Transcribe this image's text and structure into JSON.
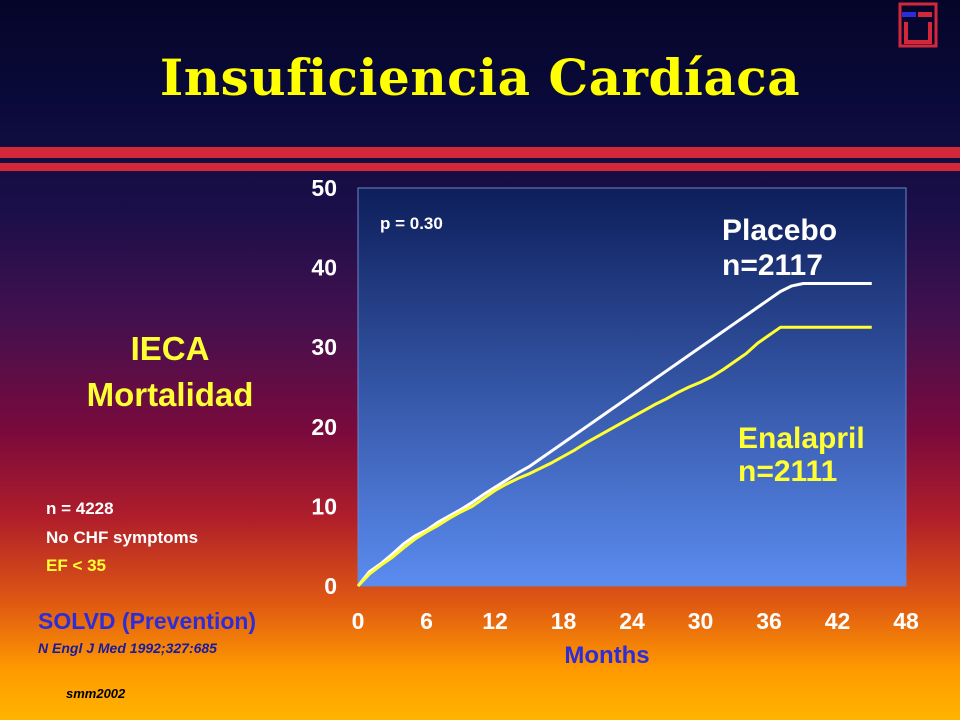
{
  "slide": {
    "title": "Insuficiencia Cardíaca",
    "side_label_line1": "IECA",
    "side_label_line2": "Mortalidad",
    "notes": [
      "n = 4228",
      "No CHF symptoms",
      "EF < 35"
    ],
    "study": "SOLVD (Prevention)",
    "reference": "N Engl J Med 1992;327:685",
    "credit": "smm2002",
    "colors": {
      "title": "#ffff00",
      "band": "#d2283a",
      "study": "#2d2dd8"
    }
  },
  "chart_data": {
    "type": "line",
    "xlabel": "Months",
    "ylabel": "",
    "xlim": [
      0,
      48
    ],
    "ylim": [
      0,
      50
    ],
    "xticks": [
      0,
      6,
      12,
      18,
      24,
      30,
      36,
      42,
      48
    ],
    "yticks": [
      0,
      10,
      20,
      30,
      40,
      50
    ],
    "annotation": "p  = 0.30",
    "grid": false,
    "series": [
      {
        "name": "Placebo",
        "label_line1": "Placebo",
        "label_line2": "n=2117",
        "color": "#ffffff",
        "x": [
          0,
          1,
          2,
          3,
          4,
          5,
          6,
          7,
          8,
          9,
          10,
          11,
          12,
          13,
          14,
          15,
          16,
          17,
          18,
          19,
          20,
          21,
          22,
          23,
          24,
          25,
          26,
          27,
          28,
          29,
          30,
          31,
          32,
          33,
          34,
          35,
          36,
          37,
          38,
          39,
          40,
          41,
          42,
          43,
          44,
          45
        ],
        "y": [
          0,
          1.8,
          2.8,
          4.0,
          5.3,
          6.3,
          7.0,
          8.0,
          8.8,
          9.6,
          10.5,
          11.5,
          12.4,
          13.3,
          14.2,
          15.0,
          16.0,
          17.0,
          18.0,
          19.0,
          20.0,
          21.0,
          22.0,
          23.0,
          24.0,
          25.0,
          26.0,
          27.0,
          28.0,
          29.0,
          30.0,
          31.0,
          32.0,
          33.0,
          34.0,
          35.0,
          36.0,
          37.0,
          37.7,
          38.0,
          38.0,
          38.0,
          38.0,
          38.0,
          38.0,
          38.0
        ]
      },
      {
        "name": "Enalapril",
        "label_line1": "Enalapril",
        "label_line2": "n=2111",
        "color": "#ffff33",
        "x": [
          0,
          1,
          2,
          3,
          4,
          5,
          6,
          7,
          8,
          9,
          10,
          11,
          12,
          13,
          14,
          15,
          16,
          17,
          18,
          19,
          20,
          21,
          22,
          23,
          24,
          25,
          26,
          27,
          28,
          29,
          30,
          31,
          32,
          33,
          34,
          35,
          36,
          37,
          38,
          39,
          40,
          41,
          42,
          43,
          44,
          45
        ],
        "y": [
          0,
          1.5,
          2.6,
          3.6,
          4.8,
          5.9,
          6.8,
          7.6,
          8.5,
          9.3,
          10.0,
          11.0,
          12.0,
          12.8,
          13.5,
          14.1,
          14.8,
          15.5,
          16.3,
          17.1,
          18.0,
          18.8,
          19.6,
          20.4,
          21.2,
          22.0,
          22.8,
          23.5,
          24.3,
          25.0,
          25.6,
          26.3,
          27.2,
          28.2,
          29.2,
          30.5,
          31.5,
          32.5,
          32.5,
          32.5,
          32.5,
          32.5,
          32.5,
          32.5,
          32.5,
          32.5
        ]
      }
    ]
  }
}
